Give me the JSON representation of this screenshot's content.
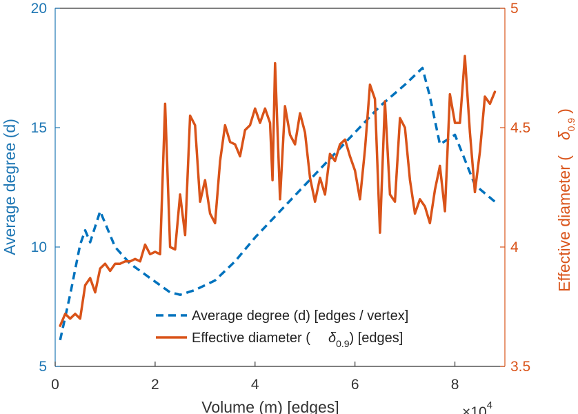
{
  "chart_data": {
    "type": "line",
    "title": "",
    "xlabel": "Volume (m) [edges]",
    "x_exponent_label": "×10",
    "x_exponent_power": "4",
    "ylabel_left": "Average degree (d)",
    "ylabel_right": "Effective diameter (",
    "ylabel_right_symbol": "δ",
    "ylabel_right_sub": "0.9",
    "ylabel_right_close": ")",
    "xlim": [
      0,
      9
    ],
    "ylim_left": [
      5,
      20
    ],
    "ylim_right": [
      3.5,
      5
    ],
    "x_ticks": [
      0,
      2,
      4,
      6,
      8
    ],
    "x_tick_labels": [
      "0",
      "2",
      "4",
      "6",
      "8"
    ],
    "y_ticks_left": [
      5,
      10,
      15,
      20
    ],
    "y_tick_labels_left": [
      "5",
      "10",
      "15",
      "20"
    ],
    "y_ticks_right": [
      3.5,
      4,
      4.5,
      5
    ],
    "y_tick_labels_right": [
      "3.5",
      "4",
      "4.5",
      "5"
    ],
    "legend": {
      "placement": "bottom-center",
      "entries": [
        {
          "label": "Average degree (d) [edges / vertex]",
          "symbol": "",
          "sub": "",
          "after": ""
        },
        {
          "label": "Effective diameter (",
          "symbol": "δ",
          "sub": "0.9",
          "after": ") [edges]"
        }
      ]
    },
    "series": [
      {
        "name": "Average degree (d) [edges / vertex]",
        "axis": "left",
        "color": "#0072bd",
        "style": "dashed",
        "x": [
          0.1,
          0.3,
          0.5,
          0.6,
          0.7,
          0.9,
          1.0,
          1.2,
          1.5,
          1.9,
          2.3,
          2.5,
          2.8,
          3.2,
          3.6,
          4.0,
          4.5,
          5.0,
          5.5,
          6.0,
          6.5,
          7.0,
          7.35,
          7.5,
          7.7,
          8.0,
          8.4,
          8.8
        ],
        "y": [
          6.1,
          8.0,
          10.1,
          10.7,
          10.2,
          11.5,
          11.0,
          10.0,
          9.3,
          8.7,
          8.1,
          8.0,
          8.2,
          8.6,
          9.4,
          10.4,
          11.5,
          12.6,
          13.7,
          14.8,
          15.9,
          16.8,
          17.5,
          16.3,
          14.3,
          14.7,
          12.6,
          11.9
        ]
      },
      {
        "name": "Effective diameter (δ0.9) [edges]",
        "axis": "right",
        "color": "#d95319",
        "style": "solid",
        "x": [
          0.1,
          0.2,
          0.3,
          0.4,
          0.5,
          0.6,
          0.7,
          0.8,
          0.9,
          1.0,
          1.1,
          1.2,
          1.3,
          1.4,
          1.5,
          1.6,
          1.7,
          1.8,
          1.9,
          2.0,
          2.1,
          2.2,
          2.3,
          2.4,
          2.5,
          2.6,
          2.7,
          2.8,
          2.9,
          3.0,
          3.1,
          3.2,
          3.3,
          3.4,
          3.5,
          3.6,
          3.7,
          3.8,
          3.9,
          4.0,
          4.1,
          4.2,
          4.3,
          4.35,
          4.4,
          4.5,
          4.6,
          4.7,
          4.8,
          4.9,
          5.0,
          5.1,
          5.2,
          5.3,
          5.4,
          5.5,
          5.6,
          5.7,
          5.8,
          5.9,
          6.0,
          6.1,
          6.2,
          6.3,
          6.4,
          6.5,
          6.6,
          6.7,
          6.8,
          6.9,
          7.0,
          7.1,
          7.2,
          7.3,
          7.4,
          7.5,
          7.6,
          7.7,
          7.8,
          7.9,
          8.0,
          8.1,
          8.2,
          8.3,
          8.4,
          8.5,
          8.6,
          8.7,
          8.8
        ],
        "y": [
          3.67,
          3.72,
          3.7,
          3.72,
          3.7,
          3.84,
          3.87,
          3.81,
          3.91,
          3.93,
          3.9,
          3.93,
          3.93,
          3.94,
          3.94,
          3.95,
          3.94,
          4.01,
          3.97,
          3.98,
          3.97,
          4.6,
          4.0,
          3.99,
          4.22,
          4.05,
          4.55,
          4.51,
          4.19,
          4.28,
          4.14,
          4.1,
          4.36,
          4.51,
          4.44,
          4.43,
          4.38,
          4.49,
          4.51,
          4.58,
          4.52,
          4.58,
          4.52,
          4.28,
          4.77,
          4.2,
          4.59,
          4.47,
          4.43,
          4.56,
          4.48,
          4.29,
          4.19,
          4.29,
          4.22,
          4.39,
          4.36,
          4.43,
          4.45,
          4.38,
          4.32,
          4.2,
          4.41,
          4.68,
          4.62,
          4.06,
          4.61,
          4.22,
          4.19,
          4.54,
          4.5,
          4.28,
          4.14,
          4.2,
          4.17,
          4.1,
          4.24,
          4.34,
          4.15,
          4.64,
          4.52,
          4.52,
          4.8,
          4.48,
          4.23,
          4.4,
          4.63,
          4.6,
          4.65
        ]
      }
    ],
    "colors": {
      "left_axis": "#1f77b4",
      "right_axis": "#d95319",
      "x_axis": "#333333"
    }
  }
}
